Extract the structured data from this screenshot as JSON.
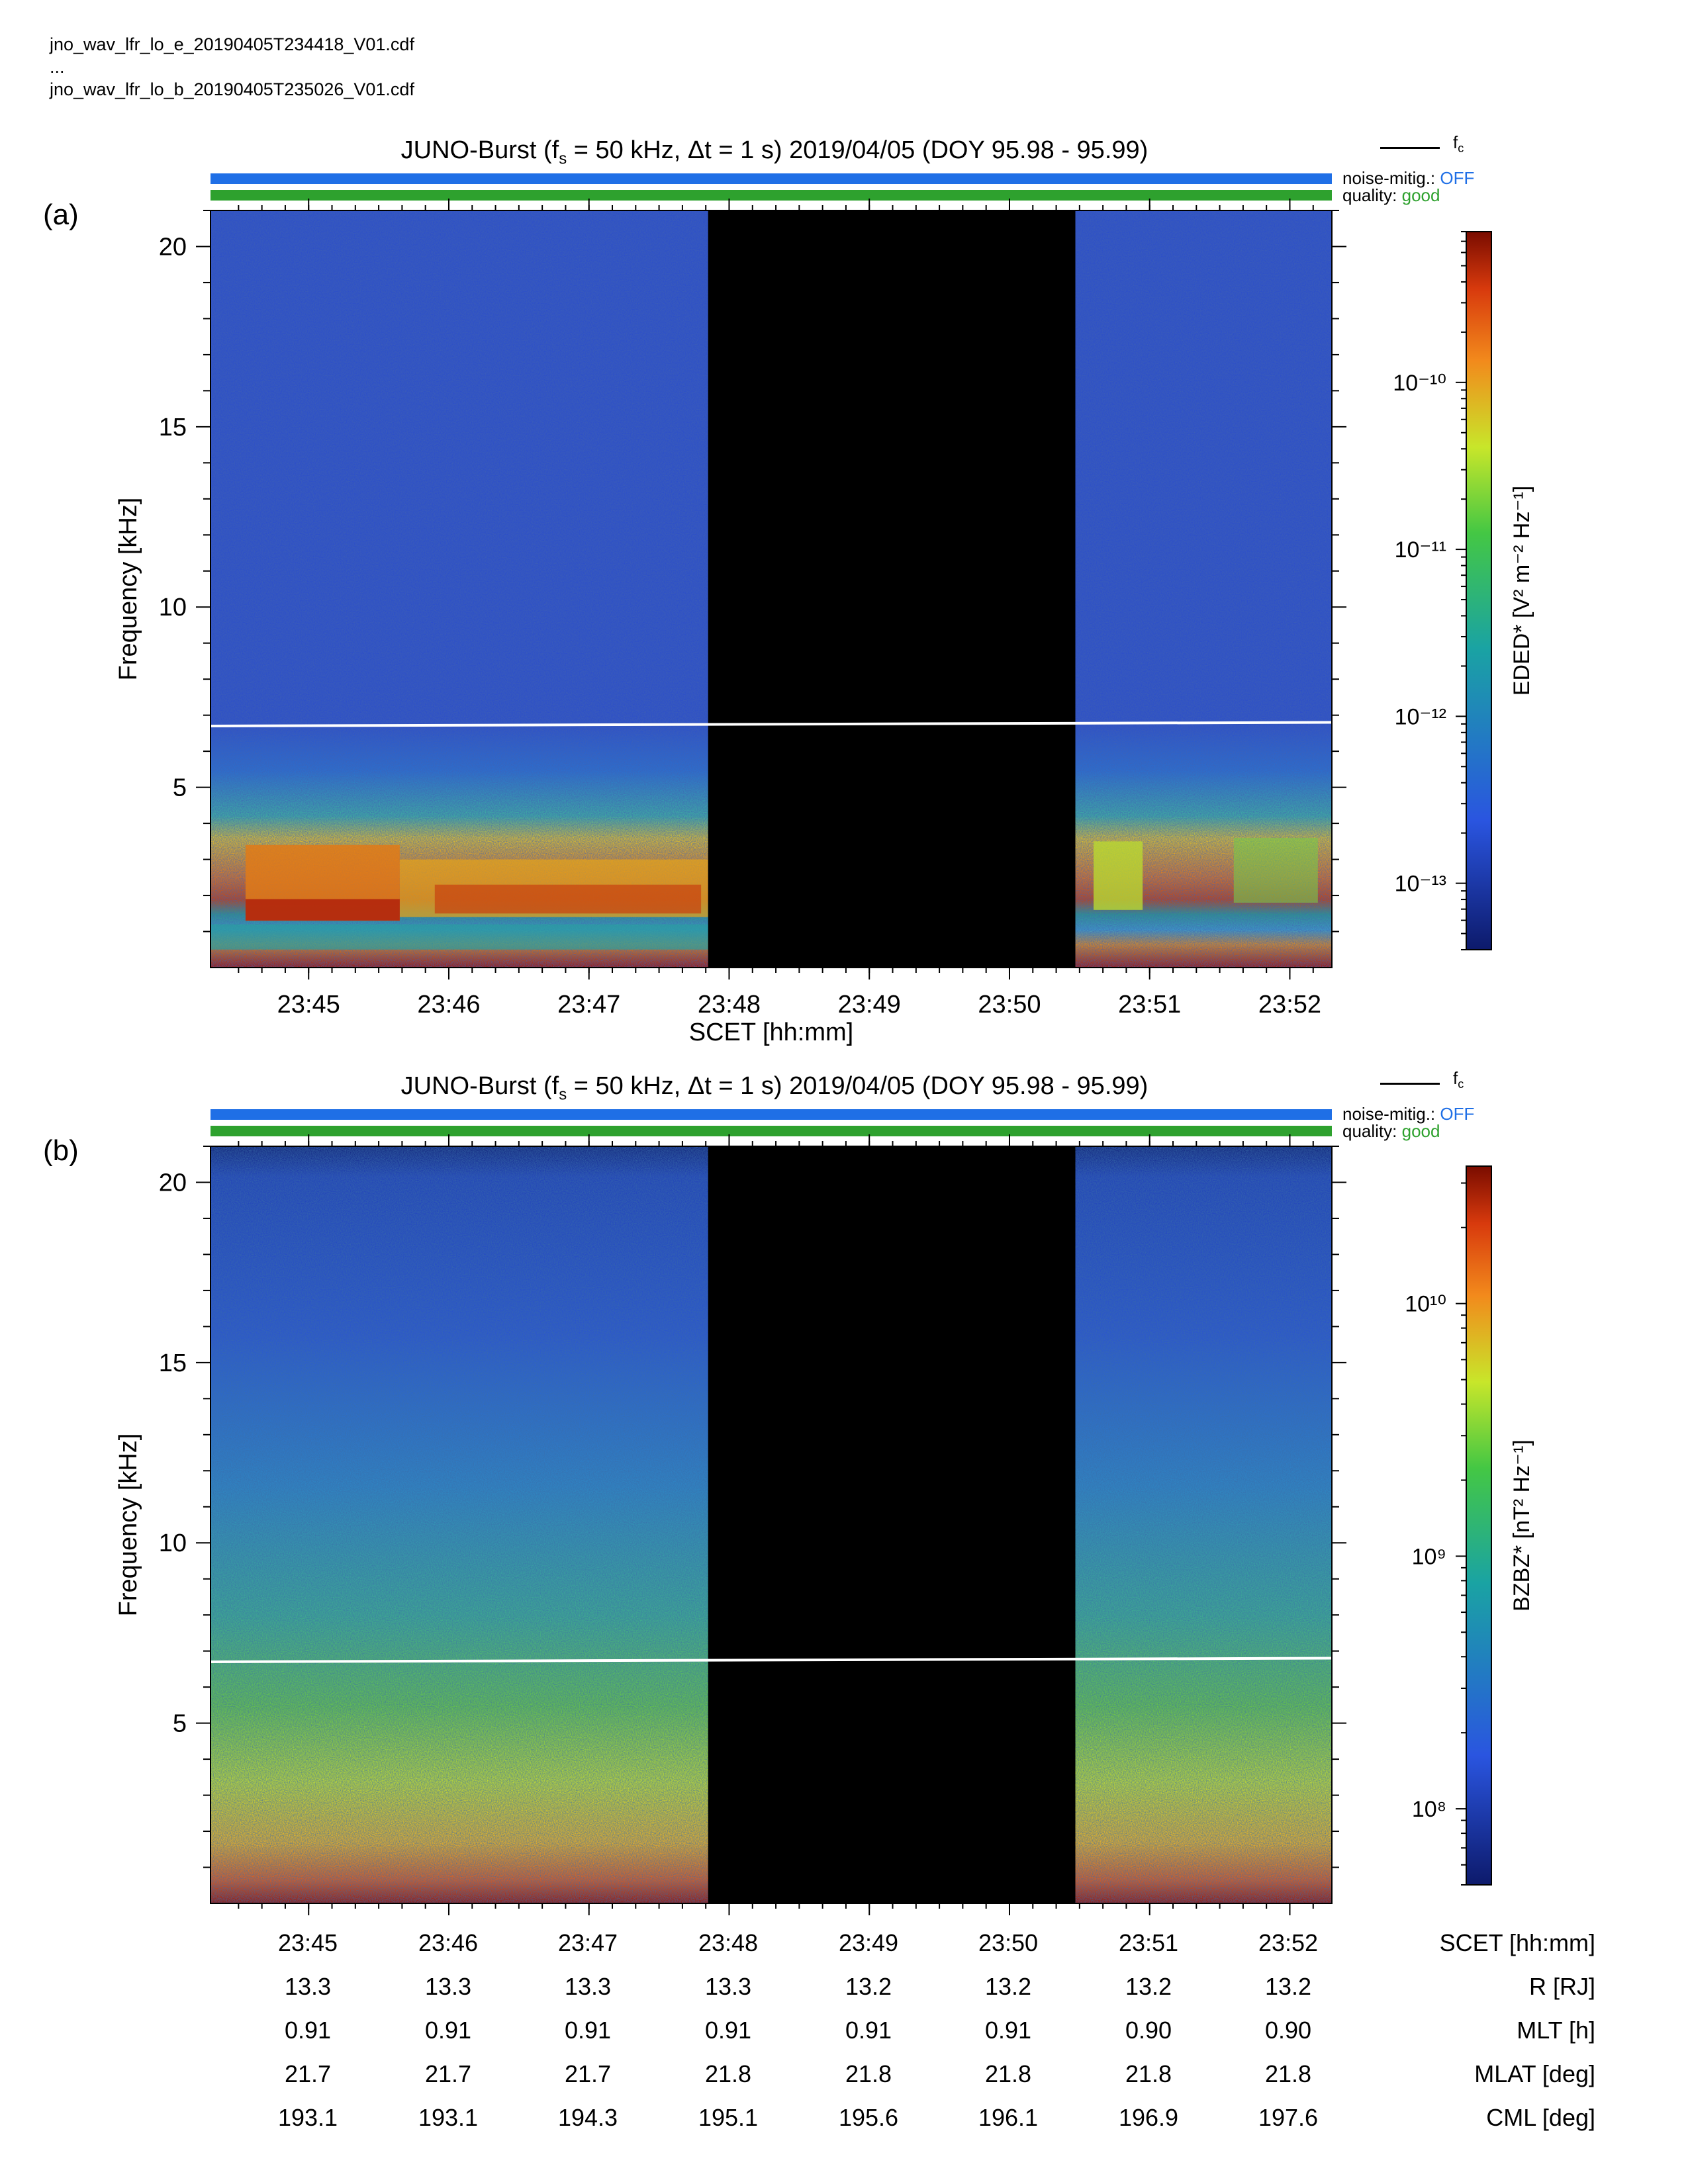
{
  "header": {
    "files": [
      "jno_wav_lfr_lo_e_20190405T234418_V01.cdf",
      "...",
      "jno_wav_lfr_lo_b_20190405T235026_V01.cdf"
    ]
  },
  "panels": [
    {
      "label": "(a)",
      "title_prefix": "JUNO-Burst (f",
      "title_sub": "s",
      "title_rest": " = 50 kHz, Δt = 1 s)  2019/04/05 (DOY 95.98 - 95.99)",
      "legend_fc": "f",
      "legend_fc_sub": "c",
      "noise_label": "noise-mitig.:",
      "noise_value": "OFF",
      "quality_label": "quality:",
      "quality_value": "good",
      "ylabel": "Frequency [kHz]",
      "xlabel": "SCET [hh:mm]",
      "colorbar_label": "EDED* [V² m⁻² Hz⁻¹]",
      "colorbar_ticks": [
        "10⁻¹⁰",
        "10⁻¹¹",
        "10⁻¹²",
        "10⁻¹³"
      ]
    },
    {
      "label": "(b)",
      "title_prefix": "JUNO-Burst (f",
      "title_sub": "s",
      "title_rest": " = 50 kHz, Δt = 1 s)  2019/04/05 (DOY 95.98 - 95.99)",
      "legend_fc": "f",
      "legend_fc_sub": "c",
      "noise_label": "noise-mitig.:",
      "noise_value": "OFF",
      "quality_label": "quality:",
      "quality_value": "good",
      "ylabel": "Frequency [kHz]",
      "colorbar_label": "BZBZ* [nT² Hz⁻¹]",
      "colorbar_ticks": [
        "10¹⁰",
        "10⁹",
        "10⁸"
      ]
    }
  ],
  "bottom_table": {
    "rows": [
      {
        "name": "SCET [hh:mm]",
        "values": [
          "23:45",
          "23:46",
          "23:47",
          "23:48",
          "23:49",
          "23:50",
          "23:51",
          "23:52"
        ]
      },
      {
        "name": "R [RJ]",
        "values": [
          "13.3",
          "13.3",
          "13.3",
          "13.3",
          "13.2",
          "13.2",
          "13.2",
          "13.2"
        ]
      },
      {
        "name": "MLT [h]",
        "values": [
          "0.91",
          "0.91",
          "0.91",
          "0.91",
          "0.91",
          "0.91",
          "0.90",
          "0.90"
        ]
      },
      {
        "name": "MLAT [deg]",
        "values": [
          "21.7",
          "21.7",
          "21.7",
          "21.8",
          "21.8",
          "21.8",
          "21.8",
          "21.8"
        ]
      },
      {
        "name": "CML [deg]",
        "values": [
          "193.1",
          "193.1",
          "194.3",
          "195.1",
          "195.6",
          "196.1",
          "196.9",
          "197.6"
        ]
      }
    ]
  },
  "chart_data": [
    {
      "type": "heatmap",
      "title": "JUNO-Burst (fs = 50 kHz, Δt = 1 s)  2019/04/05 (DOY 95.98 - 95.99)",
      "xlabel": "SCET [hh:mm]",
      "ylabel": "Frequency [kHz]",
      "colorbar": "EDED* [V² m⁻² Hz⁻¹]",
      "colorscale": "log",
      "clim": [
        4e-14,
        8e-10
      ],
      "x_ticks": [
        "23:45",
        "23:46",
        "23:47",
        "23:48",
        "23:49",
        "23:50",
        "23:51",
        "23:52"
      ],
      "xlim_minutes": [
        44.3,
        52.3
      ],
      "y_ticks": [
        5,
        10,
        15,
        20
      ],
      "ylim": [
        0,
        21
      ],
      "data_gap_minutes": [
        47.85,
        50.47
      ],
      "fc_line_kHz": [
        [
          44.3,
          6.7
        ],
        [
          52.3,
          6.8
        ]
      ],
      "colors": {
        "low": "#0d1a6b",
        "mid": "#2ecc40",
        "high": "#8a0e00",
        "fc_line": "#ffffff",
        "gap": "#000000"
      }
    },
    {
      "type": "heatmap",
      "title": "JUNO-Burst (fs = 50 kHz, Δt = 1 s)  2019/04/05 (DOY 95.98 - 95.99)",
      "ylabel": "Frequency [kHz]",
      "colorbar": "BZBZ* [nT² Hz⁻¹]",
      "colorscale": "log",
      "clim": [
        50000000.0,
        35000000000.0
      ],
      "x_ticks": [
        "23:45",
        "23:46",
        "23:47",
        "23:48",
        "23:49",
        "23:50",
        "23:51",
        "23:52"
      ],
      "xlim_minutes": [
        44.3,
        52.3
      ],
      "y_ticks": [
        5,
        10,
        15,
        20
      ],
      "ylim": [
        0,
        21
      ],
      "data_gap_minutes": [
        47.85,
        50.47
      ],
      "fc_line_kHz": [
        [
          44.3,
          6.7
        ],
        [
          52.3,
          6.8
        ]
      ],
      "colors": {
        "low": "#0d1a6b",
        "mid": "#2ecc40",
        "high": "#8a0e00",
        "fc_line": "#ffffff",
        "gap": "#000000"
      }
    }
  ]
}
